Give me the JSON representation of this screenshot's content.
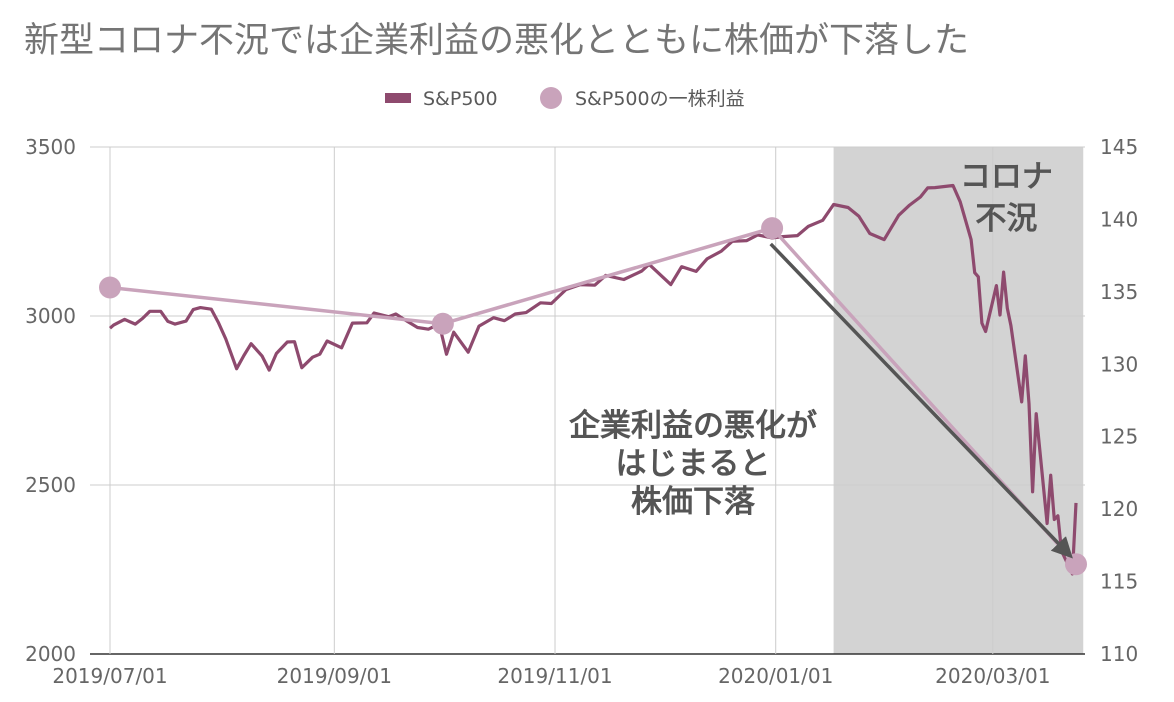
{
  "chart_data": {
    "type": "line",
    "title": "新型コロナ不況では企業利益の悪化とともに株価が下落した",
    "legend_position": "top",
    "x_axis": {
      "type": "date",
      "range": [
        "2019-07-01",
        "2020-03-24"
      ],
      "tick_labels": [
        "2019/07/01",
        "2019/09/01",
        "2019/11/01",
        "2020/01/01",
        "2020/03/01"
      ],
      "tick_dates": [
        "2019-07-01",
        "2019-09-01",
        "2019-11-01",
        "2020-01-01",
        "2020-03-01"
      ]
    },
    "y_left": {
      "min": 2000,
      "max": 3500,
      "ticks": [
        2000,
        2500,
        3000,
        3500
      ],
      "tick_labels": [
        "2000",
        "2500",
        "3000",
        "3500"
      ]
    },
    "y_right": {
      "min": 110,
      "max": 145,
      "ticks": [
        110,
        115,
        120,
        125,
        130,
        135,
        140,
        145
      ],
      "tick_labels": [
        "110",
        "115",
        "120",
        "125",
        "130",
        "135",
        "140",
        "145"
      ]
    },
    "grid": {
      "vertical": true,
      "horizontal": true
    },
    "series": [
      {
        "name": "S&P500",
        "axis": "left",
        "color": "#8e4a6e",
        "kind": "line",
        "points": [
          [
            "2019-07-01",
            2964
          ],
          [
            "2019-07-02",
            2973
          ],
          [
            "2019-07-05",
            2990
          ],
          [
            "2019-07-08",
            2976
          ],
          [
            "2019-07-10",
            2993
          ],
          [
            "2019-07-12",
            3014
          ],
          [
            "2019-07-15",
            3014
          ],
          [
            "2019-07-17",
            2984
          ],
          [
            "2019-07-19",
            2976
          ],
          [
            "2019-07-22",
            2985
          ],
          [
            "2019-07-24",
            3019
          ],
          [
            "2019-07-26",
            3025
          ],
          [
            "2019-07-29",
            3020
          ],
          [
            "2019-07-31",
            2980
          ],
          [
            "2019-08-02",
            2932
          ],
          [
            "2019-08-05",
            2844
          ],
          [
            "2019-08-07",
            2883
          ],
          [
            "2019-08-09",
            2918
          ],
          [
            "2019-08-12",
            2882
          ],
          [
            "2019-08-14",
            2840
          ],
          [
            "2019-08-16",
            2889
          ],
          [
            "2019-08-19",
            2923
          ],
          [
            "2019-08-21",
            2924
          ],
          [
            "2019-08-23",
            2847
          ],
          [
            "2019-08-26",
            2878
          ],
          [
            "2019-08-28",
            2887
          ],
          [
            "2019-08-30",
            2926
          ],
          [
            "2019-09-03",
            2906
          ],
          [
            "2019-09-06",
            2979
          ],
          [
            "2019-09-10",
            2980
          ],
          [
            "2019-09-12",
            3009
          ],
          [
            "2019-09-16",
            2998
          ],
          [
            "2019-09-18",
            3006
          ],
          [
            "2019-09-20",
            2992
          ],
          [
            "2019-09-24",
            2966
          ],
          [
            "2019-09-27",
            2961
          ],
          [
            "2019-09-30",
            2976
          ],
          [
            "2019-10-02",
            2887
          ],
          [
            "2019-10-04",
            2952
          ],
          [
            "2019-10-08",
            2893
          ],
          [
            "2019-10-11",
            2970
          ],
          [
            "2019-10-15",
            2995
          ],
          [
            "2019-10-18",
            2986
          ],
          [
            "2019-10-21",
            3006
          ],
          [
            "2019-10-24",
            3010
          ],
          [
            "2019-10-28",
            3039
          ],
          [
            "2019-10-31",
            3037
          ],
          [
            "2019-11-04",
            3078
          ],
          [
            "2019-11-08",
            3093
          ],
          [
            "2019-11-12",
            3091
          ],
          [
            "2019-11-15",
            3120
          ],
          [
            "2019-11-20",
            3108
          ],
          [
            "2019-11-25",
            3133
          ],
          [
            "2019-11-27",
            3153
          ],
          [
            "2019-12-03",
            3093
          ],
          [
            "2019-12-06",
            3146
          ],
          [
            "2019-12-10",
            3132
          ],
          [
            "2019-12-13",
            3169
          ],
          [
            "2019-12-17",
            3192
          ],
          [
            "2019-12-20",
            3221
          ],
          [
            "2019-12-24",
            3223
          ],
          [
            "2019-12-27",
            3240
          ],
          [
            "2019-12-31",
            3231
          ],
          [
            "2020-01-03",
            3235
          ],
          [
            "2020-01-07",
            3238
          ],
          [
            "2020-01-10",
            3265
          ],
          [
            "2020-01-14",
            3283
          ],
          [
            "2020-01-17",
            3330
          ],
          [
            "2020-01-21",
            3321
          ],
          [
            "2020-01-24",
            3295
          ],
          [
            "2020-01-27",
            3244
          ],
          [
            "2020-01-31",
            3226
          ],
          [
            "2020-02-04",
            3298
          ],
          [
            "2020-02-07",
            3328
          ],
          [
            "2020-02-10",
            3352
          ],
          [
            "2020-02-12",
            3379
          ],
          [
            "2020-02-14",
            3380
          ],
          [
            "2020-02-19",
            3386
          ],
          [
            "2020-02-21",
            3338
          ],
          [
            "2020-02-24",
            3226
          ],
          [
            "2020-02-25",
            3128
          ],
          [
            "2020-02-26",
            3116
          ],
          [
            "2020-02-27",
            2979
          ],
          [
            "2020-02-28",
            2954
          ],
          [
            "2020-03-02",
            3090
          ],
          [
            "2020-03-03",
            3003
          ],
          [
            "2020-03-04",
            3130
          ],
          [
            "2020-03-05",
            3023
          ],
          [
            "2020-03-06",
            2972
          ],
          [
            "2020-03-09",
            2746
          ],
          [
            "2020-03-10",
            2882
          ],
          [
            "2020-03-11",
            2741
          ],
          [
            "2020-03-12",
            2480
          ],
          [
            "2020-03-13",
            2711
          ],
          [
            "2020-03-16",
            2386
          ],
          [
            "2020-03-17",
            2529
          ],
          [
            "2020-03-18",
            2398
          ],
          [
            "2020-03-19",
            2409
          ],
          [
            "2020-03-20",
            2305
          ],
          [
            "2020-03-23",
            2237
          ],
          [
            "2020-03-24",
            2447
          ]
        ]
      },
      {
        "name": "S&P500の一株利益",
        "axis": "right",
        "color": "#c9a3bb",
        "kind": "line-markers",
        "points": [
          [
            "2019-07-01",
            135.3
          ],
          [
            "2019-10-01",
            132.8
          ],
          [
            "2019-12-31",
            139.4
          ],
          [
            "2020-03-26",
            116.2
          ]
        ]
      }
    ],
    "shaded_region": {
      "start": "2020-01-17",
      "end": "2020-03-26",
      "color": "#d3d3d3",
      "label_lines": [
        "コロナ",
        "不況"
      ]
    },
    "annotations": [
      {
        "lines": [
          "企業利益の悪化が",
          "はじまると",
          "株価下落"
        ]
      }
    ],
    "arrow": {
      "from": [
        "2020-01-01",
        139.0
      ],
      "to": [
        "2020-03-24",
        116.8
      ],
      "axis": "right",
      "color": "#555555"
    }
  }
}
